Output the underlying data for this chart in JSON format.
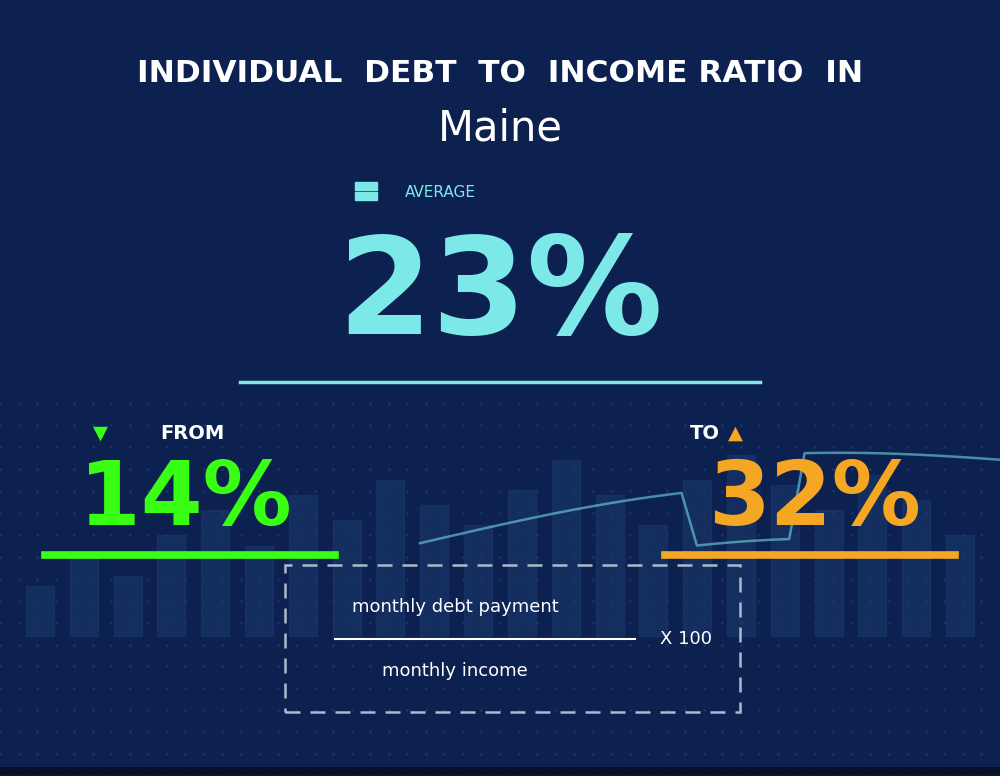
{
  "title_line1": "INDIVIDUAL  DEBT  TO  INCOME RATIO  IN",
  "title_line2": "Maine",
  "bg_color_top": "#0d2150",
  "bg_color_bottom": "#081535",
  "average_label": "AVERAGE",
  "average_value": "23%",
  "average_color": "#7de8e8",
  "average_line_color": "#7de8e8",
  "from_label": "FROM",
  "from_value": "14%",
  "from_color": "#39ff14",
  "from_line_color": "#39ff14",
  "to_label": "TO",
  "to_value": "32%",
  "to_color": "#f5a623",
  "to_line_color": "#f5a623",
  "formula_numerator": "monthly debt payment",
  "formula_denominator": "monthly income",
  "formula_multiplier": "X 100",
  "formula_box_color": "#aabbcc",
  "title_color": "#ffffff",
  "label_color": "#aaddee",
  "arrow_down_color": "#39ff14",
  "arrow_up_color": "#f5a623",
  "bar_color": "#1a3a6e",
  "dot_color": "#2a4a80",
  "line_color": "#7de8e8"
}
